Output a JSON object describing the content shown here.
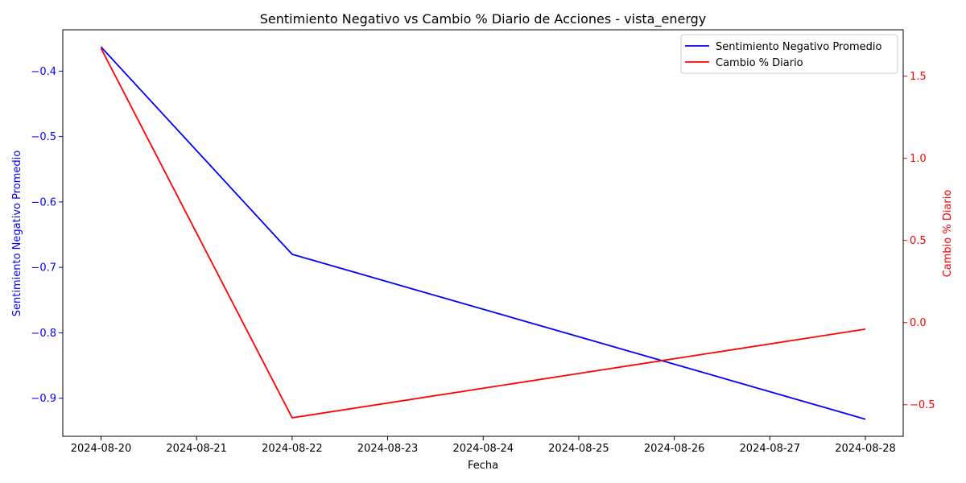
{
  "chart_data": {
    "type": "line",
    "title": "Sentimiento Negativo vs Cambio % Diario de Acciones - vista_energy",
    "xlabel": "Fecha",
    "x": [
      "2024-08-20",
      "2024-08-22",
      "2024-08-28"
    ],
    "x_ticks": [
      "2024-08-20",
      "2024-08-21",
      "2024-08-22",
      "2024-08-23",
      "2024-08-24",
      "2024-08-25",
      "2024-08-26",
      "2024-08-27",
      "2024-08-28"
    ],
    "series": [
      {
        "name": "Sentimiento Negativo Promedio",
        "axis": "left",
        "color": "#0000ff",
        "values": [
          -0.363,
          -0.68,
          -0.932
        ]
      },
      {
        "name": "Cambio % Diario",
        "axis": "right",
        "color": "#ff0000",
        "values": [
          1.67,
          -0.58,
          -0.04
        ]
      }
    ],
    "y_left": {
      "label": "Sentimiento Negativo Promedio",
      "color": "#0000ff",
      "ticks": [
        "−0.4",
        "−0.5",
        "−0.6",
        "−0.7",
        "−0.8",
        "−0.9"
      ],
      "tick_values": [
        -0.4,
        -0.5,
        -0.6,
        -0.7,
        -0.8,
        -0.9
      ],
      "ylim": [
        -0.9582,
        -0.3368
      ]
    },
    "y_right": {
      "label": "Cambio % Diario",
      "color": "#ff0000",
      "ticks": [
        "1.5",
        "1.0",
        "0.5",
        "0.0",
        "−0.5"
      ],
      "tick_values": [
        1.5,
        1.0,
        0.5,
        0.0,
        -0.5
      ],
      "ylim": [
        -0.6925,
        1.7825
      ]
    },
    "legend_position": "top-right",
    "grid": false
  }
}
